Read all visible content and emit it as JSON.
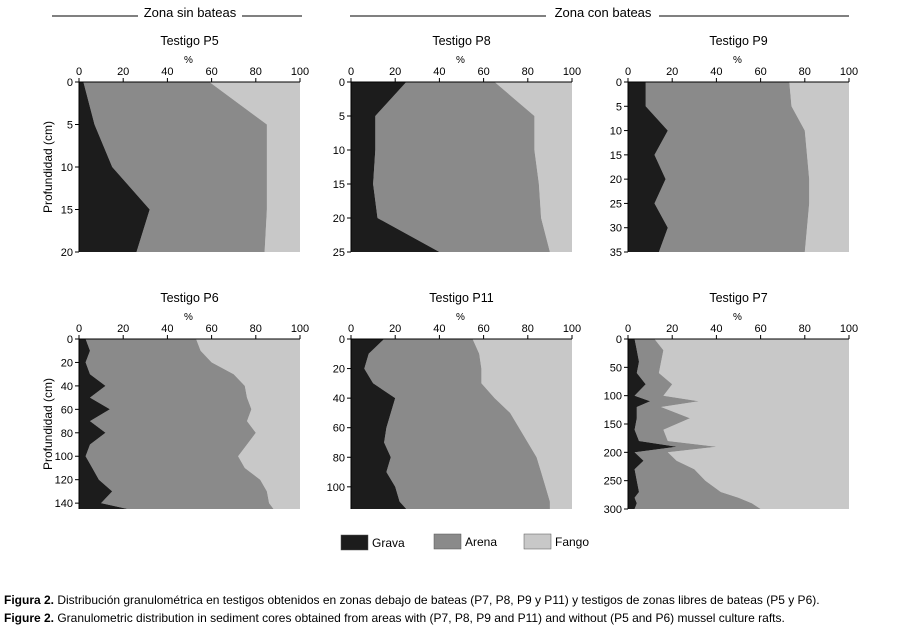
{
  "headers": {
    "left": "Zona sin bateas",
    "right": "Zona con bateas"
  },
  "y_axis_label": "Profundidad (cm)",
  "x_axis_unit": "%",
  "legend": [
    {
      "label": "Grava",
      "color": "#1c1c1c"
    },
    {
      "label": "Arena",
      "color": "#8a8a8a"
    },
    {
      "label": "Fango",
      "color": "#c8c8c8"
    }
  ],
  "chart_data": [
    {
      "type": "area",
      "title": "Testigo P5",
      "xlim": [
        0,
        100
      ],
      "ylim": [
        0,
        20
      ],
      "xticks": [
        "0",
        "20",
        "40",
        "60",
        "80",
        "100"
      ],
      "yticks": [
        "0",
        "5",
        "10",
        "15",
        "20"
      ],
      "depth": [
        0,
        5,
        10,
        15,
        20
      ],
      "grava_cum": [
        2,
        7,
        15,
        32,
        26
      ],
      "arena_cum": [
        59,
        85,
        85,
        85,
        84
      ]
    },
    {
      "type": "area",
      "title": "Testigo P8",
      "xlim": [
        0,
        100
      ],
      "ylim": [
        0,
        25
      ],
      "xticks": [
        "0",
        "20",
        "40",
        "60",
        "80",
        "100"
      ],
      "yticks": [
        "0",
        "5",
        "10",
        "15",
        "20",
        "25"
      ],
      "depth": [
        0,
        5,
        10,
        15,
        20,
        25
      ],
      "grava_cum": [
        25,
        11,
        11,
        10,
        12,
        40
      ],
      "arena_cum": [
        65,
        83,
        83,
        85,
        86,
        90
      ]
    },
    {
      "type": "area",
      "title": "Testigo P9",
      "xlim": [
        0,
        100
      ],
      "ylim": [
        0,
        35
      ],
      "xticks": [
        "0",
        "20",
        "40",
        "60",
        "80",
        "100"
      ],
      "yticks": [
        "0",
        "5",
        "10",
        "15",
        "20",
        "25",
        "30",
        "35"
      ],
      "depth": [
        0,
        5,
        10,
        15,
        20,
        25,
        30,
        35
      ],
      "grava_cum": [
        8,
        8,
        18,
        12,
        17,
        12,
        18,
        14
      ],
      "arena_cum": [
        73,
        74,
        80,
        81,
        82,
        82,
        81,
        80
      ]
    },
    {
      "type": "area",
      "title": "Testigo P6",
      "xlim": [
        0,
        100
      ],
      "ylim": [
        0,
        145
      ],
      "xticks": [
        "0",
        "20",
        "40",
        "60",
        "80",
        "100"
      ],
      "yticks": [
        "0",
        "20",
        "40",
        "60",
        "80",
        "100",
        "120",
        "140"
      ],
      "depth": [
        0,
        10,
        20,
        30,
        40,
        50,
        60,
        70,
        80,
        90,
        100,
        110,
        120,
        130,
        140,
        145
      ],
      "grava_cum": [
        3,
        5,
        3,
        5,
        12,
        5,
        14,
        5,
        12,
        5,
        3,
        6,
        9,
        15,
        10,
        22
      ],
      "arena_cum": [
        53,
        55,
        60,
        70,
        75,
        76,
        78,
        76,
        80,
        76,
        72,
        75,
        82,
        85,
        86,
        88
      ]
    },
    {
      "type": "area",
      "title": "Testigo P11",
      "xlim": [
        0,
        100
      ],
      "ylim": [
        0,
        115
      ],
      "xticks": [
        "0",
        "20",
        "40",
        "60",
        "80",
        "100"
      ],
      "yticks": [
        "0",
        "20",
        "40",
        "60",
        "80",
        "100"
      ],
      "depth": [
        0,
        10,
        20,
        30,
        40,
        50,
        60,
        70,
        80,
        90,
        100,
        110,
        115
      ],
      "grava_cum": [
        15,
        8,
        6,
        10,
        20,
        18,
        16,
        15,
        18,
        16,
        20,
        22,
        25
      ],
      "arena_cum": [
        55,
        58,
        59,
        59,
        65,
        72,
        76,
        80,
        84,
        86,
        88,
        90,
        90
      ]
    },
    {
      "type": "area",
      "title": "Testigo P7",
      "xlim": [
        0,
        100
      ],
      "ylim": [
        0,
        300
      ],
      "xticks": [
        "0",
        "20",
        "40",
        "60",
        "80",
        "100"
      ],
      "yticks": [
        "0",
        "50",
        "100",
        "150",
        "200",
        "250",
        "300"
      ],
      "depth": [
        0,
        20,
        40,
        60,
        80,
        100,
        110,
        120,
        140,
        160,
        180,
        190,
        200,
        215,
        230,
        250,
        270,
        280,
        290,
        300
      ],
      "grava_cum": [
        3,
        4,
        5,
        4,
        8,
        3,
        10,
        4,
        4,
        3,
        5,
        22,
        3,
        7,
        3,
        4,
        5,
        3,
        4,
        3
      ],
      "arena_cum": [
        12,
        16,
        15,
        14,
        20,
        16,
        32,
        15,
        28,
        16,
        18,
        40,
        18,
        22,
        30,
        35,
        42,
        50,
        56,
        60
      ]
    }
  ],
  "caption": [
    {
      "label": "Figura 2.",
      "text": " Distribución granulométrica en testigos obtenidos en zonas debajo de bateas (P7, P8, P9 y P11) y testigos de zonas libres de bateas (P5 y P6)."
    },
    {
      "label": "Figure 2.",
      "text": " Granulometric distribution in sediment cores obtained from areas with (P7, P8, P9 and P11) and without (P5 and P6) mussel culture rafts."
    }
  ]
}
